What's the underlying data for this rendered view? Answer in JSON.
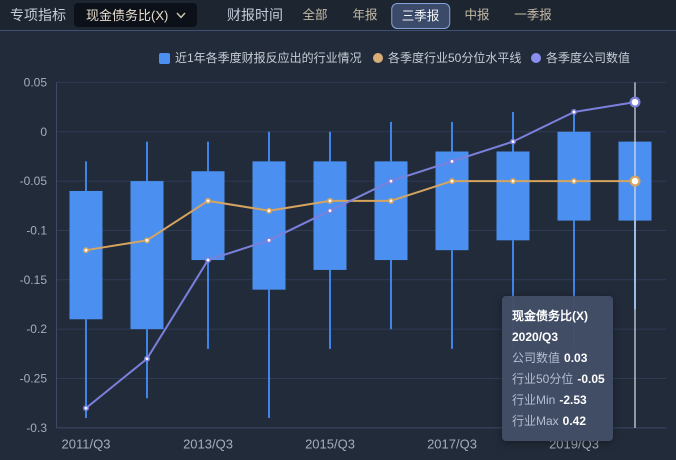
{
  "toolbar": {
    "metric_section_label": "专项指标",
    "metric_dropdown_value": "现金债务比(X)",
    "period_section_label": "财报时间",
    "tabs": [
      {
        "label": "全部",
        "selected": false
      },
      {
        "label": "年报",
        "selected": false
      },
      {
        "label": "三季报",
        "selected": true
      },
      {
        "label": "中报",
        "selected": false
      },
      {
        "label": "一季报",
        "selected": false
      }
    ]
  },
  "legend": {
    "items": [
      {
        "marker": "square",
        "color": "#4b90f0",
        "label": "近1年各季度财报反应出的行业情况"
      },
      {
        "marker": "circle",
        "color": "#d9ad78",
        "label": "各季度行业50分位水平线"
      },
      {
        "marker": "circle",
        "color": "#8a8ef0",
        "label": "各季度公司数值"
      }
    ]
  },
  "chart_data": {
    "type": "candlestick",
    "title": "",
    "categories": [
      "2011/Q3",
      "2012/Q3",
      "2013/Q3",
      "2014/Q3",
      "2015/Q3",
      "2016/Q3",
      "2017/Q3",
      "2018/Q3",
      "2019/Q3",
      "2020/Q3"
    ],
    "x_tick_labels": [
      "2011/Q3",
      "2013/Q3",
      "2015/Q3",
      "2017/Q3",
      "2019/Q3"
    ],
    "x_tick_indices": [
      0,
      2,
      4,
      6,
      8
    ],
    "y_tick_labels": [
      "0.05",
      "0",
      "-0.05",
      "-0.1",
      "-0.15",
      "-0.2",
      "-0.25",
      "-0.3"
    ],
    "y_ticks": [
      0.05,
      0,
      -0.05,
      -0.1,
      -0.15,
      -0.2,
      -0.25,
      -0.3
    ],
    "ylim": [
      -0.3,
      0.05
    ],
    "grid": true,
    "series": [
      {
        "name": "近1年各季度财报反应出的行业情况",
        "type": "boxes",
        "color": "#4b90f0",
        "whisker_color": "#3f85e8",
        "high": [
          -0.03,
          -0.01,
          -0.01,
          0.0,
          0.0,
          0.01,
          0.01,
          0.02,
          0.02,
          null
        ],
        "q3": [
          -0.06,
          -0.05,
          -0.04,
          -0.03,
          -0.03,
          -0.03,
          -0.02,
          -0.02,
          0.0,
          -0.01
        ],
        "q1": [
          -0.19,
          -0.2,
          -0.13,
          -0.16,
          -0.14,
          -0.13,
          -0.12,
          -0.11,
          -0.09,
          -0.09
        ],
        "low": [
          -0.29,
          -0.27,
          -0.22,
          -0.29,
          -0.22,
          -0.2,
          -0.22,
          -0.22,
          -0.22,
          -0.18
        ]
      },
      {
        "name": "各季度行业50分位水平线",
        "type": "line",
        "color": "#d5a45f",
        "values": [
          -0.12,
          -0.11,
          -0.07,
          -0.08,
          -0.07,
          -0.07,
          -0.05,
          -0.05,
          -0.05,
          -0.05
        ]
      },
      {
        "name": "各季度公司数值",
        "type": "line",
        "color": "#7b80dc",
        "values": [
          -0.28,
          -0.23,
          -0.13,
          -0.11,
          -0.08,
          -0.05,
          -0.03,
          -0.01,
          0.02,
          0.03
        ]
      }
    ],
    "highlighted_category": "2020/Q3",
    "highlight_line_color": "#dde1e8"
  },
  "tooltip": {
    "title": "现金债务比(X)",
    "period": "2020/Q3",
    "rows": [
      {
        "label": "公司数值",
        "value": "0.03"
      },
      {
        "label": "行业50分位",
        "value": "-0.05"
      },
      {
        "label": "行业Min",
        "value": "-2.53"
      },
      {
        "label": "行业Max",
        "value": "0.42"
      }
    ]
  },
  "colors": {
    "background": "#222b3a",
    "topbar_background": "#1d2530",
    "topbar_separator": "#3e5073",
    "grid_line": "#2f3b55",
    "axis_line": "#3d4a66",
    "axis_text": "#a4adbb",
    "box_fill": "#4b90f0",
    "median_line": "#d5a45f",
    "company_line": "#7b80dc",
    "tooltip_background": "#434e67"
  }
}
